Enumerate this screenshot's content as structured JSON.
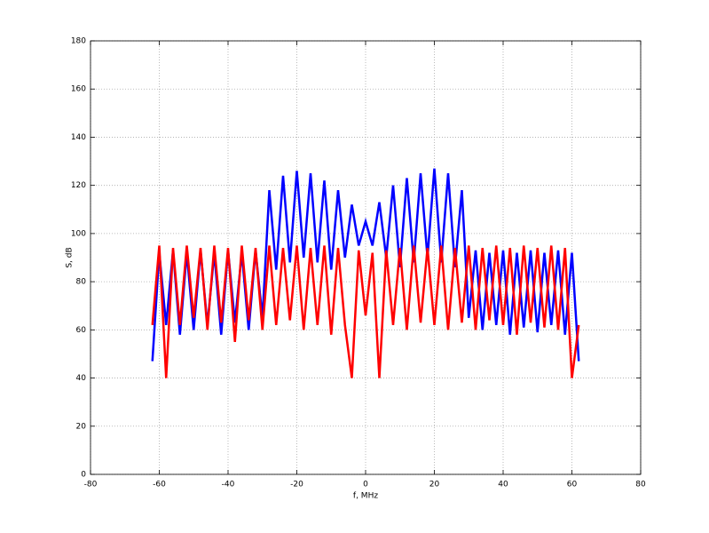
{
  "chart_data": {
    "type": "line",
    "xlabel": "f, MHz",
    "ylabel": "S, dB",
    "xlim": [
      -80,
      80
    ],
    "xticks": [
      -80,
      -60,
      -40,
      -20,
      0,
      20,
      40,
      60,
      80
    ],
    "ylim": [
      0,
      180
    ],
    "yticks": [
      0,
      20,
      40,
      60,
      80,
      100,
      120,
      140,
      160,
      180
    ],
    "grid": true,
    "x": [
      -62,
      -60,
      -58,
      -56,
      -54,
      -52,
      -50,
      -48,
      -46,
      -44,
      -42,
      -40,
      -38,
      -36,
      -34,
      -32,
      -30,
      -28,
      -26,
      -24,
      -22,
      -20,
      -18,
      -16,
      -14,
      -12,
      -10,
      -8,
      -6,
      -4,
      -2,
      0,
      2,
      4,
      6,
      8,
      10,
      12,
      14,
      16,
      18,
      20,
      22,
      24,
      26,
      28,
      30,
      32,
      34,
      36,
      38,
      40,
      42,
      44,
      46,
      48,
      50,
      52,
      54,
      56,
      58,
      60,
      62
    ],
    "series": [
      {
        "color": "#0000ff",
        "values": [
          47,
          92,
          62,
          93,
          58,
          92,
          60,
          93,
          62,
          92,
          58,
          93,
          63,
          92,
          60,
          93,
          65,
          118,
          85,
          124,
          88,
          126,
          90,
          125,
          88,
          122,
          85,
          118,
          90,
          112,
          95,
          105,
          95,
          113,
          90,
          120,
          86,
          123,
          88,
          125,
          90,
          127,
          88,
          125,
          86,
          118,
          65,
          93,
          60,
          92,
          62,
          93,
          58,
          92,
          61,
          93,
          59,
          92,
          62,
          93,
          58,
          92,
          47
        ]
      },
      {
        "color": "#ff0000",
        "values": [
          62,
          95,
          40,
          94,
          62,
          95,
          65,
          94,
          60,
          95,
          63,
          94,
          55,
          95,
          64,
          94,
          60,
          95,
          62,
          94,
          64,
          95,
          60,
          94,
          62,
          95,
          58,
          94,
          62,
          40,
          93,
          66,
          92,
          40,
          93,
          62,
          94,
          60,
          95,
          63,
          94,
          62,
          95,
          60,
          94,
          63,
          95,
          60,
          94,
          64,
          95,
          62,
          94,
          58,
          95,
          63,
          94,
          61,
          95,
          60,
          94,
          40,
          62
        ]
      }
    ]
  }
}
